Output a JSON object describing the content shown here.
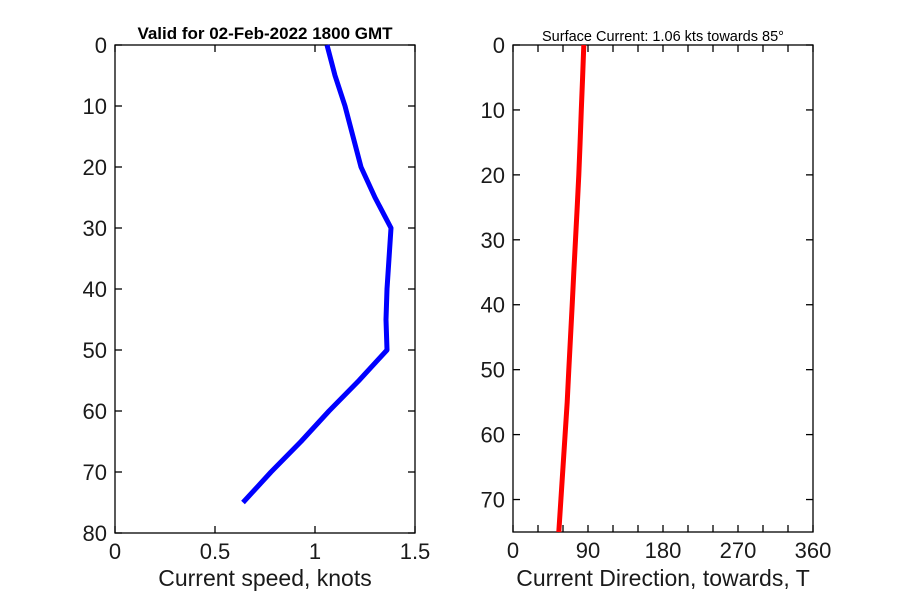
{
  "style": {
    "background": "#ffffff",
    "axis_color": "#000000",
    "tick_label_color": "#1a1a1a",
    "speed_line_color": "#0000ff",
    "direction_line_color": "#ff0000",
    "profile_line_width": 5
  },
  "chart_data": [
    {
      "type": "line",
      "id": "current-speed-profile",
      "title": "Valid for 02-Feb-2022 1800 GMT",
      "xlabel": "Current speed, knots",
      "ylabel": "",
      "xlim": [
        0,
        1.5
      ],
      "xticks": [
        0,
        0.5,
        1,
        1.5
      ],
      "xtick_labels": [
        "0",
        "0.5",
        "1",
        "1.5"
      ],
      "xminor_step": null,
      "ylim": [
        0,
        80
      ],
      "yticks": [
        0,
        10,
        20,
        30,
        40,
        50,
        60,
        70,
        80
      ],
      "y_direction": "depth-increases-downward",
      "grid": false,
      "line_color": "#0000ff",
      "series": [
        {
          "name": "current-speed-vs-depth",
          "depth_m": [
            0,
            5,
            10,
            15,
            20,
            25,
            30,
            35,
            40,
            45,
            50,
            55,
            60,
            65,
            70,
            75
          ],
          "values": [
            1.06,
            1.1,
            1.15,
            1.19,
            1.23,
            1.3,
            1.38,
            1.37,
            1.36,
            1.355,
            1.36,
            1.22,
            1.07,
            0.93,
            0.78,
            0.64
          ]
        }
      ]
    },
    {
      "type": "line",
      "id": "current-direction-profile",
      "title": "Surface Current: 1.06 kts towards 85°",
      "xlabel": "Current Direction, towards, T",
      "ylabel": "",
      "xlim": [
        0,
        360
      ],
      "xticks": [
        0,
        90,
        180,
        270,
        360
      ],
      "xtick_labels": [
        "0",
        "90",
        "180",
        "270",
        "360"
      ],
      "xminor_step": 30,
      "ylim": [
        0,
        75
      ],
      "yticks": [
        0,
        10,
        20,
        30,
        40,
        50,
        60,
        70
      ],
      "y_direction": "depth-increases-downward",
      "grid": false,
      "line_color": "#ff0000",
      "series": [
        {
          "name": "current-direction-vs-depth",
          "depth_m": [
            0,
            5,
            10,
            15,
            20,
            25,
            30,
            35,
            40,
            45,
            50,
            55,
            60,
            65,
            70,
            75
          ],
          "values": [
            85,
            83.5,
            82,
            80.5,
            79,
            77,
            75,
            73,
            71,
            69,
            67,
            65,
            62.5,
            60,
            57.5,
            55
          ]
        }
      ]
    }
  ]
}
